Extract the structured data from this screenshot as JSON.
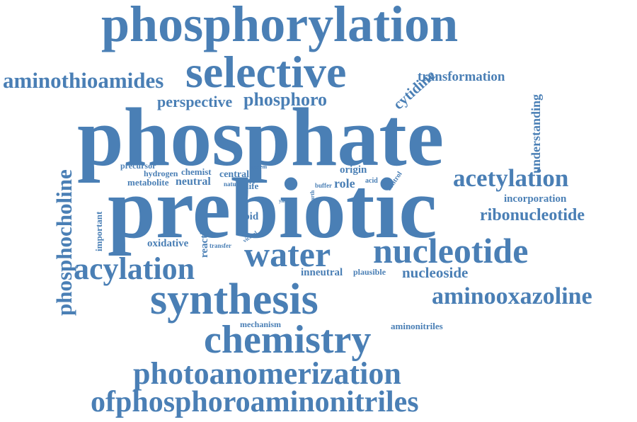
{
  "cloud": {
    "color": "#4a7fb5",
    "words": [
      "phosphorylation",
      "selective",
      "aminothioamides",
      "transformation",
      "perspective",
      "phosphoro",
      "cytidine",
      "understanding",
      "phosphate",
      "phosphocholine",
      "precursor",
      "hydrogen",
      "chemist",
      "system",
      "central",
      "metabolite",
      "neutral",
      "natural",
      "life",
      "origin",
      "buffer",
      "acid",
      "control",
      "role",
      "earth",
      "yield",
      "acetylation",
      "incorporation",
      "prebiotic",
      "important",
      "lipid",
      "ribonucleotide",
      "reaction",
      "vicinal",
      "oxidative",
      "transfer",
      "water",
      "nucleotide",
      "acylation",
      "inneutral",
      "plausible",
      "nucleoside",
      "synthesis",
      "aminooxazoline",
      "mechanism",
      "aminonitriles",
      "chemistry",
      "photoanomerization",
      "ofphosphoroaminonitriles"
    ]
  }
}
